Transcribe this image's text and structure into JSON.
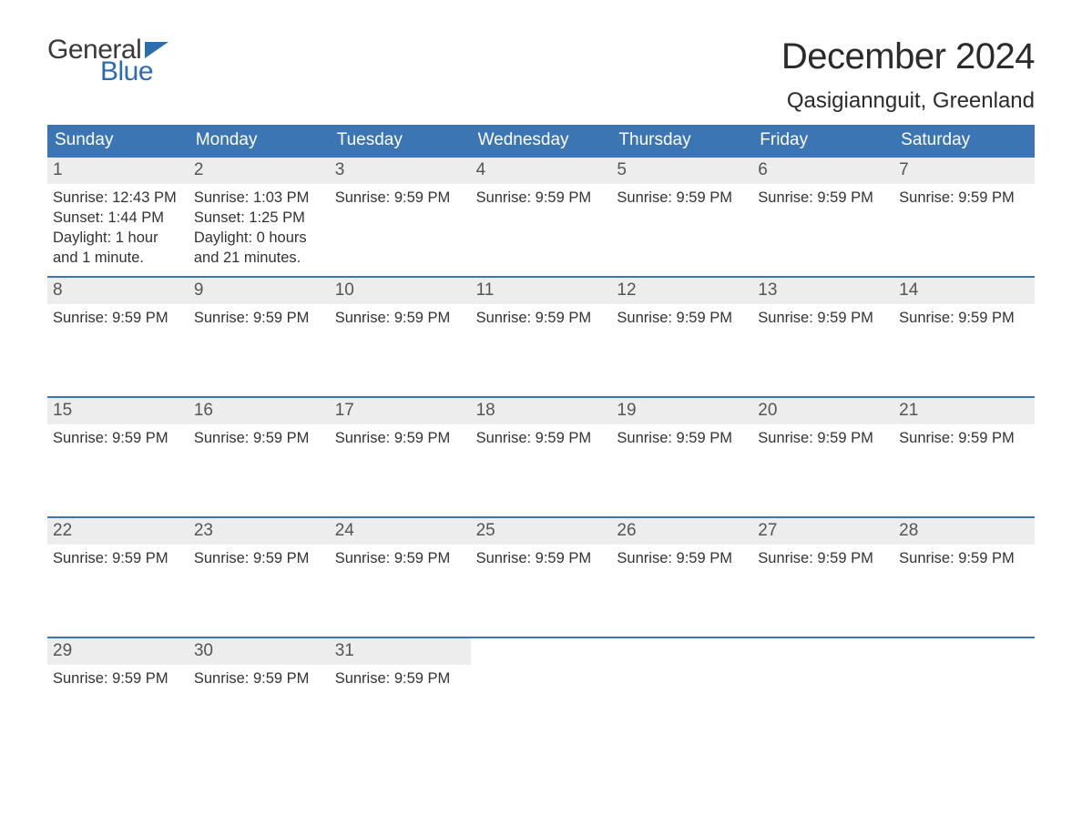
{
  "logo": {
    "general": "General",
    "blue": "Blue"
  },
  "title": "December 2024",
  "location": "Qasigiannguit, Greenland",
  "colors": {
    "header_bg": "#3b75b3",
    "header_text": "#ffffff",
    "daynum_bg": "#ededed",
    "daynum_text": "#555555",
    "border": "#3b75b3",
    "body_text": "#333333",
    "logo_blue": "#2a6db0",
    "logo_dark": "#3a3a3a"
  },
  "typography": {
    "title_fontsize": 40,
    "location_fontsize": 24,
    "weekday_fontsize": 19,
    "daynum_fontsize": 19,
    "content_fontsize": 16.5
  },
  "weekdays": [
    "Sunday",
    "Monday",
    "Tuesday",
    "Wednesday",
    "Thursday",
    "Friday",
    "Saturday"
  ],
  "weeks": [
    [
      {
        "n": "1",
        "lines": [
          "Sunrise: 12:43 PM",
          "Sunset: 1:44 PM",
          "Daylight: 1 hour and 1 minute."
        ]
      },
      {
        "n": "2",
        "lines": [
          "Sunrise: 1:03 PM",
          "Sunset: 1:25 PM",
          "Daylight: 0 hours and 21 minutes."
        ]
      },
      {
        "n": "3",
        "lines": [
          "Sunrise: 9:59 PM"
        ]
      },
      {
        "n": "4",
        "lines": [
          "Sunrise: 9:59 PM"
        ]
      },
      {
        "n": "5",
        "lines": [
          "Sunrise: 9:59 PM"
        ]
      },
      {
        "n": "6",
        "lines": [
          "Sunrise: 9:59 PM"
        ]
      },
      {
        "n": "7",
        "lines": [
          "Sunrise: 9:59 PM"
        ]
      }
    ],
    [
      {
        "n": "8",
        "lines": [
          "Sunrise: 9:59 PM"
        ]
      },
      {
        "n": "9",
        "lines": [
          "Sunrise: 9:59 PM"
        ]
      },
      {
        "n": "10",
        "lines": [
          "Sunrise: 9:59 PM"
        ]
      },
      {
        "n": "11",
        "lines": [
          "Sunrise: 9:59 PM"
        ]
      },
      {
        "n": "12",
        "lines": [
          "Sunrise: 9:59 PM"
        ]
      },
      {
        "n": "13",
        "lines": [
          "Sunrise: 9:59 PM"
        ]
      },
      {
        "n": "14",
        "lines": [
          "Sunrise: 9:59 PM"
        ]
      }
    ],
    [
      {
        "n": "15",
        "lines": [
          "Sunrise: 9:59 PM"
        ]
      },
      {
        "n": "16",
        "lines": [
          "Sunrise: 9:59 PM"
        ]
      },
      {
        "n": "17",
        "lines": [
          "Sunrise: 9:59 PM"
        ]
      },
      {
        "n": "18",
        "lines": [
          "Sunrise: 9:59 PM"
        ]
      },
      {
        "n": "19",
        "lines": [
          "Sunrise: 9:59 PM"
        ]
      },
      {
        "n": "20",
        "lines": [
          "Sunrise: 9:59 PM"
        ]
      },
      {
        "n": "21",
        "lines": [
          "Sunrise: 9:59 PM"
        ]
      }
    ],
    [
      {
        "n": "22",
        "lines": [
          "Sunrise: 9:59 PM"
        ]
      },
      {
        "n": "23",
        "lines": [
          "Sunrise: 9:59 PM"
        ]
      },
      {
        "n": "24",
        "lines": [
          "Sunrise: 9:59 PM"
        ]
      },
      {
        "n": "25",
        "lines": [
          "Sunrise: 9:59 PM"
        ]
      },
      {
        "n": "26",
        "lines": [
          "Sunrise: 9:59 PM"
        ]
      },
      {
        "n": "27",
        "lines": [
          "Sunrise: 9:59 PM"
        ]
      },
      {
        "n": "28",
        "lines": [
          "Sunrise: 9:59 PM"
        ]
      }
    ],
    [
      {
        "n": "29",
        "lines": [
          "Sunrise: 9:59 PM"
        ]
      },
      {
        "n": "30",
        "lines": [
          "Sunrise: 9:59 PM"
        ]
      },
      {
        "n": "31",
        "lines": [
          "Sunrise: 9:59 PM"
        ]
      },
      {
        "n": "",
        "lines": []
      },
      {
        "n": "",
        "lines": []
      },
      {
        "n": "",
        "lines": []
      },
      {
        "n": "",
        "lines": []
      }
    ]
  ]
}
